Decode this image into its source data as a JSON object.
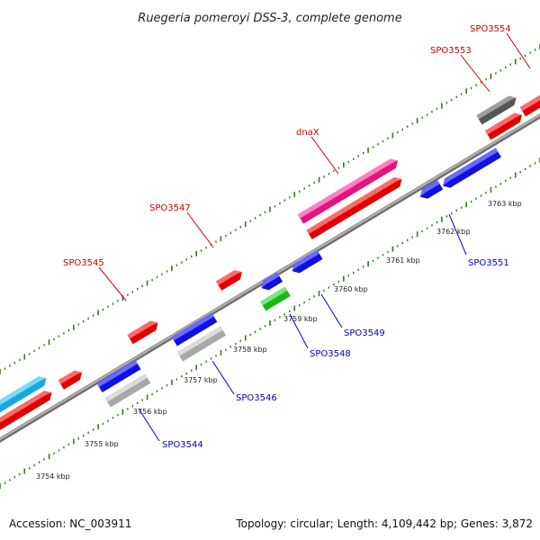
{
  "title": "Ruegeria pomeroyi DSS-3, complete genome",
  "footer": {
    "accession": "Accession: NC_003911",
    "summary": "Topology: circular; Length: 4,109,442 bp; Genes: 3,872"
  },
  "colors": {
    "backbone": "#8c8c8c",
    "tick": "#2e7d1a",
    "forward_label": "#cc0000",
    "reverse_label": "#0000cc",
    "background": "#ffffff"
  },
  "scale": {
    "labels": [
      "3754 kbp",
      "3755 kbp",
      "3756 kbp",
      "3757 kbp",
      "3758 kbp",
      "3759 kbp",
      "3760 kbp",
      "3761 kbp",
      "3762 kbp",
      "3763 kbp"
    ]
  },
  "forward_labels": [
    "SPO3545",
    "SPO3547",
    "dnaX",
    "SPO3553",
    "SPO3554"
  ],
  "reverse_labels": [
    "SPO3544",
    "SPO3546",
    "SPO3548",
    "SPO3549",
    "SPO3551"
  ]
}
